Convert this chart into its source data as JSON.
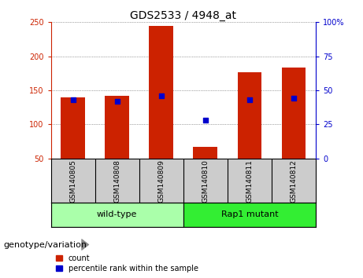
{
  "title": "GDS2533 / 4948_at",
  "samples": [
    "GSM140805",
    "GSM140808",
    "GSM140809",
    "GSM140810",
    "GSM140811",
    "GSM140812"
  ],
  "counts": [
    140,
    142,
    245,
    67,
    177,
    183
  ],
  "percentiles": [
    43,
    42,
    46,
    28,
    43,
    44
  ],
  "ylim_left": [
    50,
    250
  ],
  "ylim_right": [
    0,
    100
  ],
  "yticks_left": [
    50,
    100,
    150,
    200,
    250
  ],
  "yticks_right": [
    0,
    25,
    50,
    75,
    100
  ],
  "groups": [
    {
      "label": "wild-type",
      "indices": [
        0,
        1,
        2
      ],
      "color": "#AAFFAA"
    },
    {
      "label": "Rap1 mutant",
      "indices": [
        3,
        4,
        5
      ],
      "color": "#33EE33"
    }
  ],
  "bar_color": "#CC2200",
  "percentile_color": "#0000CC",
  "bar_width": 0.55,
  "left_axis_color": "#CC2200",
  "right_axis_color": "#0000CC",
  "title_fontsize": 10,
  "tick_fontsize": 7,
  "sample_label_fontsize": 6.5,
  "legend_fontsize": 7,
  "group_label_fontsize": 8,
  "genotype_label": "genotype/variation",
  "legend_count": "count",
  "legend_percentile": "percentile rank within the sample",
  "grid_color": "#555555",
  "background_plot": "#FFFFFF",
  "background_sample": "#CCCCCC",
  "divider_color": "#000000"
}
